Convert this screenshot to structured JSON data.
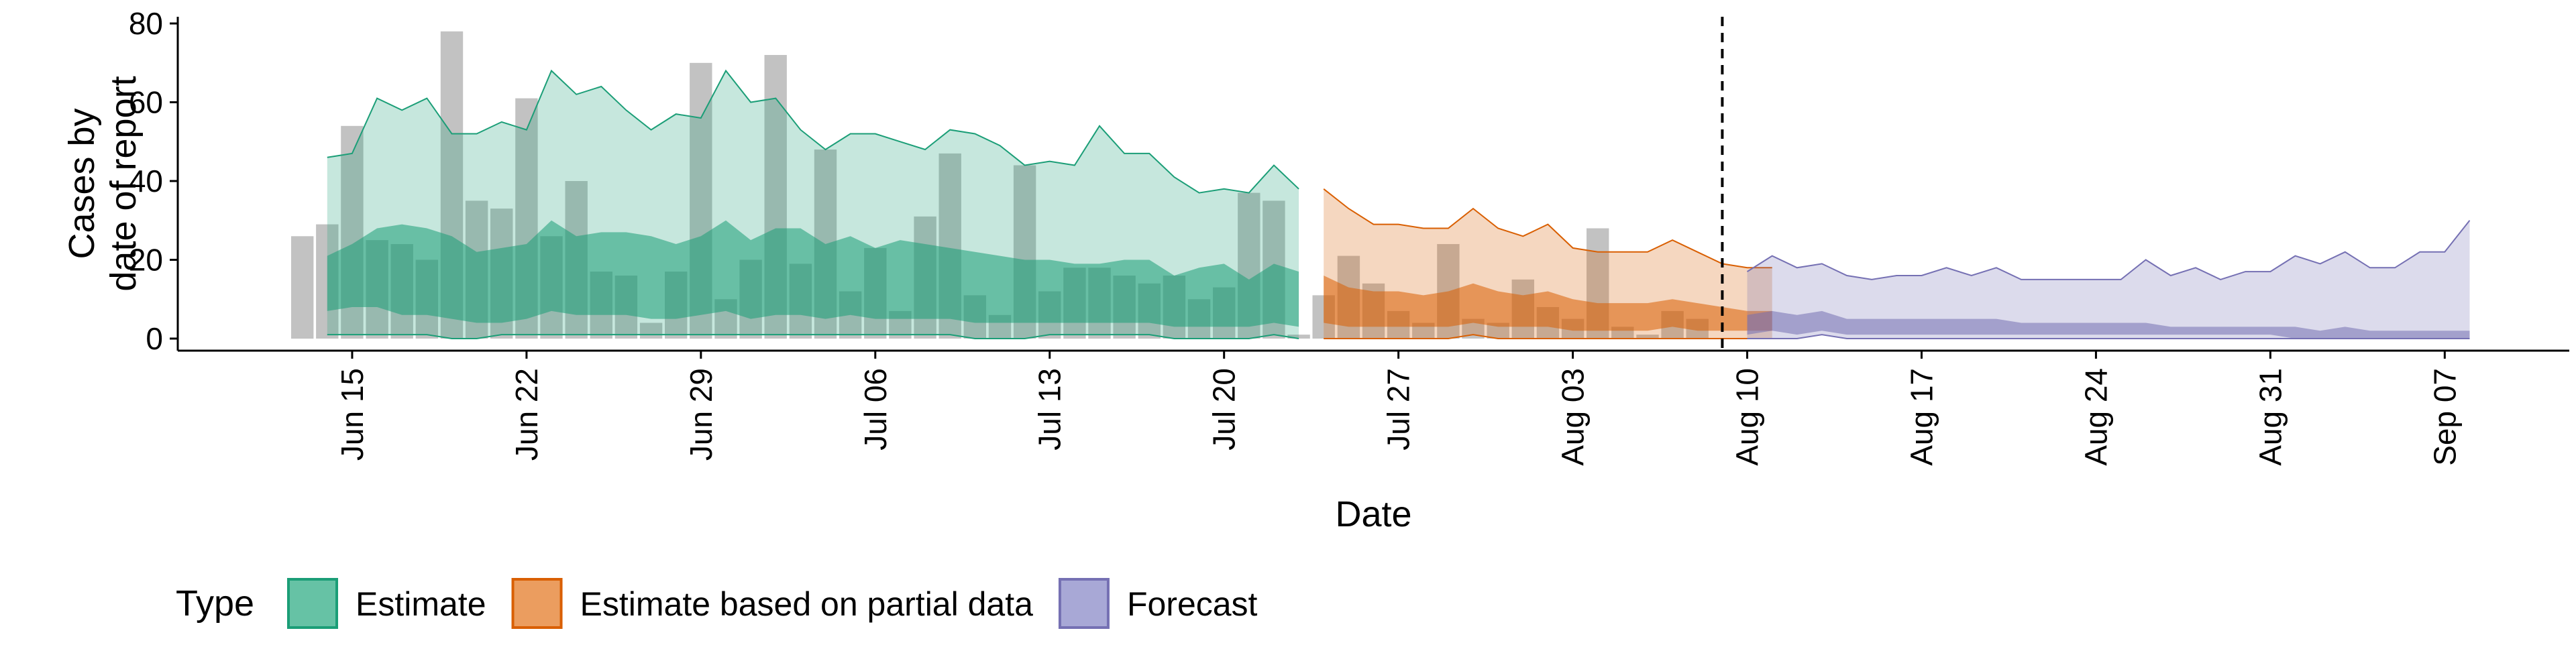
{
  "chart_data": {
    "type": "area",
    "xlabel": "Date",
    "ylabel": [
      "Cases by",
      "date of report"
    ],
    "ylim": [
      0,
      80
    ],
    "yticks": [
      0,
      20,
      40,
      60,
      80
    ],
    "xlim": [
      "2020-06-08",
      "2020-09-12"
    ],
    "xticks": [
      {
        "date": "2020-06-15",
        "label": "Jun 15"
      },
      {
        "date": "2020-06-22",
        "label": "Jun 22"
      },
      {
        "date": "2020-06-29",
        "label": "Jun 29"
      },
      {
        "date": "2020-07-06",
        "label": "Jul 06"
      },
      {
        "date": "2020-07-13",
        "label": "Jul 13"
      },
      {
        "date": "2020-07-20",
        "label": "Jul 20"
      },
      {
        "date": "2020-07-27",
        "label": "Jul 27"
      },
      {
        "date": "2020-08-03",
        "label": "Aug 03"
      },
      {
        "date": "2020-08-10",
        "label": "Aug 10"
      },
      {
        "date": "2020-08-17",
        "label": "Aug 17"
      },
      {
        "date": "2020-08-24",
        "label": "Aug 24"
      },
      {
        "date": "2020-08-31",
        "label": "Aug 31"
      },
      {
        "date": "2020-09-07",
        "label": "Sep 07"
      }
    ],
    "vline_date": "2020-08-09",
    "grid": false,
    "legend": {
      "title": "Type",
      "position": "bottom",
      "entries": [
        {
          "label": "Estimate",
          "fill": "#66c2a5",
          "stroke": "#1b9e77"
        },
        {
          "label": "Estimate based on partial data",
          "fill": "#eb9d5f",
          "stroke": "#d95f02"
        },
        {
          "label": "Forecast",
          "fill": "#a8a8d6",
          "stroke": "#7570b3"
        }
      ]
    },
    "colors": {
      "estimate_stroke": "#1b9e77",
      "estimate_fill": "#1b9e77",
      "partial_stroke": "#d95f02",
      "partial_fill": "#d95f02",
      "forecast_stroke": "#7570b3",
      "forecast_fill": "#7570b3",
      "bar": "#9a9a9a",
      "axis": "#000000"
    },
    "bars": {
      "start": "2020-06-13",
      "values": [
        26,
        29,
        54,
        25,
        24,
        20,
        78,
        35,
        33,
        61,
        26,
        40,
        17,
        16,
        4,
        17,
        70,
        10,
        20,
        72,
        19,
        48,
        12,
        23,
        7,
        31,
        47,
        11,
        6,
        44,
        12,
        18,
        18,
        16,
        14,
        16,
        10,
        13,
        37,
        35,
        1,
        11,
        21,
        14,
        7,
        4,
        24,
        5,
        4,
        15,
        8,
        5,
        28,
        3,
        1,
        7,
        5
      ]
    },
    "series": [
      {
        "name": "Estimate",
        "start": "2020-06-14",
        "upper90": [
          46,
          47,
          61,
          58,
          61,
          52,
          52,
          55,
          53,
          68,
          62,
          64,
          58,
          53,
          57,
          56,
          68,
          60,
          61,
          53,
          48,
          52,
          52,
          50,
          48,
          53,
          52,
          49,
          44,
          45,
          44,
          54,
          47,
          47,
          41,
          37,
          38,
          37,
          44,
          38
        ],
        "upper50": [
          21,
          24,
          28,
          29,
          28,
          26,
          22,
          23,
          24,
          30,
          26,
          27,
          27,
          26,
          24,
          26,
          30,
          25,
          28,
          28,
          24,
          26,
          23,
          25,
          24,
          23,
          22,
          21,
          20,
          20,
          19,
          19,
          20,
          20,
          16,
          18,
          19,
          15,
          19,
          17
        ],
        "lower50": [
          7,
          8,
          8,
          6,
          6,
          5,
          4,
          4,
          5,
          7,
          6,
          6,
          6,
          5,
          5,
          6,
          7,
          5,
          6,
          6,
          5,
          6,
          5,
          5,
          5,
          5,
          4,
          4,
          4,
          4,
          4,
          4,
          4,
          4,
          3,
          3,
          3,
          3,
          4,
          3
        ],
        "lower90": [
          1,
          1,
          1,
          1,
          1,
          0,
          0,
          1,
          1,
          1,
          1,
          1,
          1,
          1,
          1,
          1,
          1,
          1,
          1,
          1,
          1,
          1,
          1,
          1,
          1,
          1,
          0,
          0,
          0,
          1,
          1,
          1,
          1,
          1,
          0,
          0,
          0,
          0,
          1,
          0
        ]
      },
      {
        "name": "Estimate based on partial data",
        "start": "2020-07-24",
        "upper90": [
          38,
          33,
          29,
          29,
          28,
          28,
          33,
          28,
          26,
          29,
          23,
          22,
          22,
          22,
          25,
          22,
          19,
          18,
          18
        ],
        "upper50": [
          16,
          13,
          12,
          12,
          11,
          12,
          14,
          12,
          11,
          12,
          10,
          9,
          9,
          9,
          10,
          9,
          8,
          7,
          7
        ],
        "lower50": [
          4,
          3,
          3,
          3,
          3,
          3,
          4,
          3,
          3,
          3,
          2,
          2,
          2,
          2,
          3,
          2,
          2,
          2,
          2
        ],
        "lower90": [
          0,
          0,
          0,
          0,
          0,
          0,
          1,
          0,
          0,
          0,
          0,
          0,
          0,
          0,
          0,
          0,
          0,
          0,
          0
        ]
      },
      {
        "name": "Forecast",
        "start": "2020-08-10",
        "upper90": [
          17,
          21,
          18,
          19,
          16,
          15,
          16,
          16,
          18,
          16,
          18,
          15,
          15,
          15,
          15,
          15,
          20,
          16,
          18,
          15,
          17,
          17,
          21,
          19,
          22,
          18,
          18,
          22,
          22,
          30
        ],
        "upper50": [
          6,
          7,
          6,
          7,
          5,
          5,
          5,
          5,
          5,
          5,
          5,
          4,
          4,
          4,
          4,
          4,
          4,
          3,
          3,
          3,
          3,
          3,
          3,
          2,
          3,
          2,
          2,
          2,
          2,
          2
        ],
        "lower50": [
          1,
          2,
          1,
          2,
          1,
          1,
          1,
          1,
          1,
          1,
          1,
          1,
          1,
          1,
          1,
          1,
          1,
          1,
          1,
          1,
          1,
          1,
          0,
          0,
          0,
          0,
          0,
          0,
          0,
          0
        ],
        "lower90": [
          0,
          0,
          0,
          1,
          0,
          0,
          0,
          0,
          0,
          0,
          0,
          0,
          0,
          0,
          0,
          0,
          0,
          0,
          0,
          0,
          0,
          0,
          0,
          0,
          0,
          0,
          0,
          0,
          0,
          0
        ]
      }
    ]
  }
}
